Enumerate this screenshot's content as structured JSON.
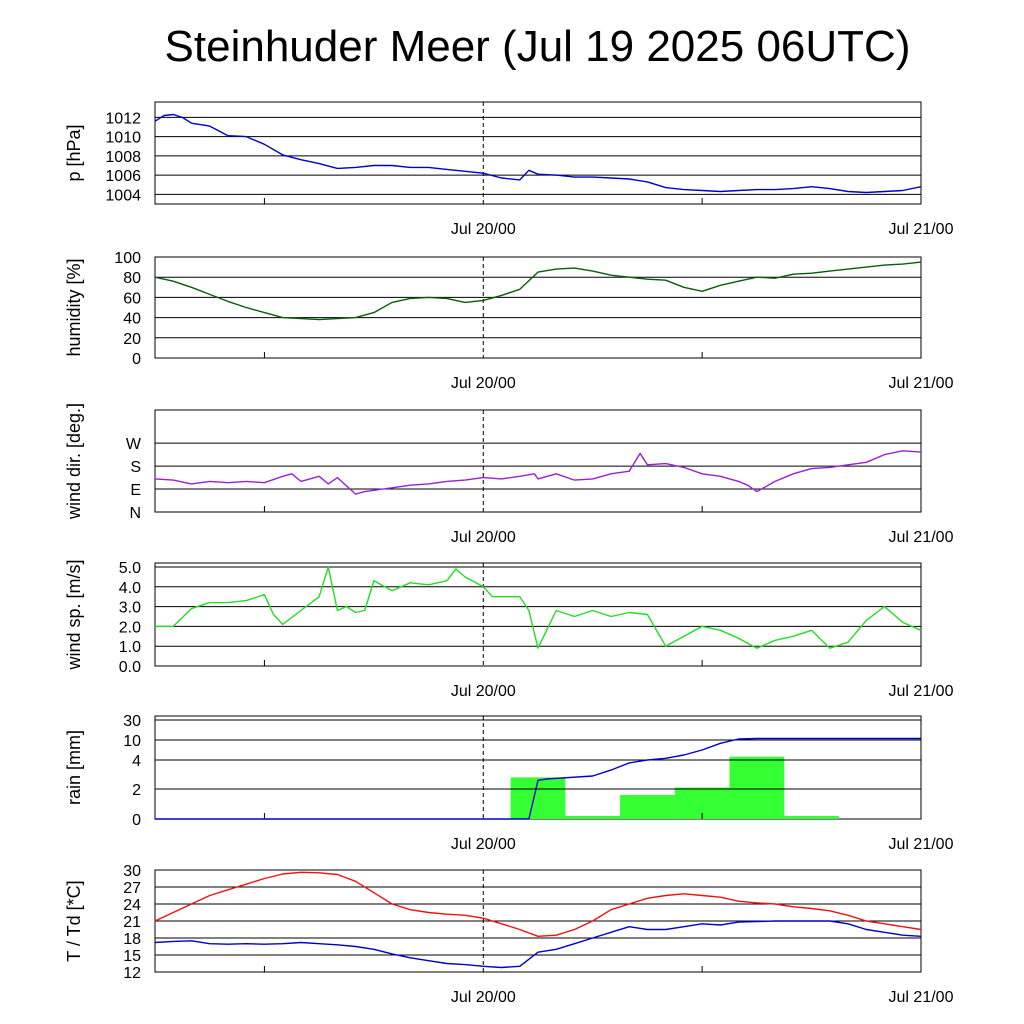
{
  "title": "Steinhuder Meer (Jul 19 2025 06UTC)",
  "colors": {
    "pressure": "#0000cc",
    "humidity": "#0a5c0a",
    "wind_dir": "#9a1fd6",
    "wind_speed": "#22dd22",
    "rain_bar": "#33ff33",
    "rain_cumulative": "#0000cc",
    "temperature": "#ee1111",
    "dewpoint": "#0000cc"
  },
  "chart_data": [
    {
      "type": "line",
      "ylabel": "p [hPa]",
      "ylim": [
        1003,
        1013.6
      ],
      "yticks": [
        1004,
        1006,
        1008,
        1010,
        1012
      ],
      "ytick_labels": [
        "1004",
        "1006",
        "1008",
        "1010",
        "1012"
      ],
      "x_ticks": [
        "Jul 20/00",
        "Jul 21/00"
      ],
      "x_tick_hours": [
        18,
        42
      ],
      "xlim_hours": [
        0,
        42
      ],
      "series": [
        {
          "name": "",
          "x": [
            0,
            0.5,
            1,
            1.5,
            2,
            3,
            4,
            5,
            6,
            7,
            8,
            9,
            10,
            11,
            12,
            13,
            14,
            15,
            16,
            17,
            18,
            19,
            20,
            20.5,
            21,
            22,
            23,
            24,
            25,
            26,
            27,
            28,
            29,
            30,
            31,
            32,
            33,
            34,
            35,
            36,
            37,
            38,
            39,
            40,
            41,
            42
          ],
          "y": [
            1011.6,
            1012.2,
            1012.3,
            1012.0,
            1011.4,
            1011.1,
            1010.1,
            1010.0,
            1009.2,
            1008.1,
            1007.6,
            1007.2,
            1006.7,
            1006.8,
            1007.0,
            1007.0,
            1006.8,
            1006.8,
            1006.6,
            1006.4,
            1006.2,
            1005.7,
            1005.5,
            1006.5,
            1006.1,
            1006.0,
            1005.8,
            1005.8,
            1005.7,
            1005.6,
            1005.3,
            1004.7,
            1004.5,
            1004.4,
            1004.3,
            1004.4,
            1004.5,
            1004.5,
            1004.6,
            1004.8,
            1004.6,
            1004.3,
            1004.2,
            1004.3,
            1004.4,
            1004.8
          ]
        }
      ]
    },
    {
      "type": "line",
      "ylabel": "humidity [%]",
      "ylim": [
        0,
        100
      ],
      "yticks": [
        0,
        20,
        40,
        60,
        80,
        100
      ],
      "ytick_labels": [
        "0",
        "20",
        "40",
        "60",
        "80",
        "100"
      ],
      "x_ticks": [
        "Jul 20/00",
        "Jul 21/00"
      ],
      "x_tick_hours": [
        18,
        42
      ],
      "xlim_hours": [
        0,
        42
      ],
      "series": [
        {
          "name": "",
          "x": [
            0,
            1,
            2,
            3,
            4,
            5,
            6,
            7,
            8,
            9,
            10,
            11,
            12,
            13,
            14,
            15,
            16,
            17,
            18,
            19,
            20,
            21,
            22,
            23,
            24,
            25,
            26,
            27,
            28,
            29,
            30,
            31,
            32,
            33,
            34,
            35,
            36,
            37,
            38,
            39,
            40,
            41,
            42
          ],
          "y": [
            80,
            76,
            70,
            63,
            56,
            50,
            45,
            40,
            39,
            38,
            39,
            40,
            45,
            55,
            59,
            60,
            59,
            55,
            57,
            62,
            68,
            85,
            88,
            89,
            86,
            82,
            80,
            78,
            77,
            70,
            66,
            72,
            76,
            80,
            79,
            83,
            84,
            86,
            88,
            90,
            92,
            93,
            95
          ]
        }
      ]
    },
    {
      "type": "line",
      "ylabel": "wind dir. [deg.]",
      "ylim": [
        0,
        400
      ],
      "yticks": [
        0,
        90,
        180,
        270
      ],
      "ytick_labels": [
        "N",
        "E",
        "S",
        "W"
      ],
      "x_ticks": [
        "Jul 20/00",
        "Jul 21/00"
      ],
      "x_tick_hours": [
        18,
        42
      ],
      "xlim_hours": [
        0,
        42
      ],
      "series": [
        {
          "name": "",
          "x": [
            0,
            1,
            2,
            3,
            4,
            5,
            6,
            7,
            7.5,
            8,
            9,
            9.5,
            10,
            11,
            11.5,
            12,
            13,
            14,
            15,
            16,
            17,
            18,
            19,
            20,
            20.8,
            21,
            22,
            23,
            24,
            25,
            26,
            26.6,
            27,
            28,
            29,
            30,
            31,
            32,
            32.5,
            33,
            34,
            35,
            36,
            37,
            38,
            39,
            40,
            41,
            42
          ],
          "y": [
            130,
            125,
            110,
            120,
            115,
            120,
            115,
            140,
            150,
            120,
            140,
            110,
            135,
            70,
            80,
            85,
            95,
            105,
            110,
            120,
            125,
            135,
            130,
            140,
            150,
            130,
            150,
            125,
            130,
            150,
            160,
            230,
            185,
            190,
            175,
            150,
            140,
            120,
            105,
            80,
            120,
            150,
            170,
            175,
            185,
            195,
            225,
            240,
            235
          ]
        }
      ]
    },
    {
      "type": "line",
      "ylabel": "wind sp. [m/s]",
      "ylim": [
        0,
        5.2
      ],
      "yticks": [
        0,
        1,
        2,
        3,
        4,
        5
      ],
      "ytick_labels": [
        "0.0",
        "1.0",
        "2.0",
        "3.0",
        "4.0",
        "5.0"
      ],
      "x_ticks": [
        "Jul 20/00",
        "Jul 21/00"
      ],
      "x_tick_hours": [
        18,
        42
      ],
      "xlim_hours": [
        0,
        42
      ],
      "series": [
        {
          "name": "",
          "x": [
            0,
            1,
            2,
            3,
            4,
            5,
            6,
            6.5,
            7,
            8,
            9,
            9.5,
            10,
            10.5,
            11,
            11.5,
            12,
            13,
            14,
            15,
            16,
            16.5,
            17,
            18,
            18.5,
            19,
            20,
            20.5,
            21,
            22,
            23,
            24,
            25,
            26,
            27,
            28,
            29,
            30,
            31,
            32,
            33,
            34,
            35,
            36,
            37,
            38,
            39,
            40,
            41,
            42
          ],
          "y": [
            2.0,
            2.0,
            2.9,
            3.2,
            3.2,
            3.3,
            3.6,
            2.6,
            2.1,
            2.8,
            3.5,
            5.0,
            2.8,
            3.0,
            2.7,
            2.8,
            4.3,
            3.8,
            4.2,
            4.1,
            4.3,
            4.9,
            4.5,
            4.0,
            3.5,
            3.5,
            3.5,
            2.8,
            0.9,
            2.8,
            2.5,
            2.8,
            2.5,
            2.7,
            2.6,
            1.0,
            1.5,
            2.0,
            1.8,
            1.4,
            0.9,
            1.3,
            1.5,
            1.8,
            0.9,
            1.2,
            2.3,
            3.0,
            2.2,
            1.8
          ]
        }
      ]
    },
    {
      "type": "bar",
      "ylabel": "rain [mm]",
      "ylim": [
        0,
        30
      ],
      "yticks": [
        0,
        2,
        4,
        10,
        30
      ],
      "ytick_labels": [
        "0",
        "2",
        "4",
        "10",
        "30"
      ],
      "y_scale": "nonlinear (ticks 0, 2, 4, 10, 30 evenly spaced)",
      "x_ticks": [
        "Jul 20/00",
        "Jul 21/00"
      ],
      "x_tick_hours": [
        18,
        42
      ],
      "xlim_hours": [
        0,
        42
      ],
      "bars": {
        "start_hours": [
          19.5,
          22.5,
          25.5,
          28.5,
          31.5,
          34.5
        ],
        "width_hours": 3,
        "values": [
          2.8,
          0.2,
          1.6,
          2.1,
          5.0,
          0.2
        ]
      },
      "series": [
        {
          "name": "",
          "x": [
            0,
            20.5,
            21,
            21.5,
            24,
            25,
            26,
            27,
            28,
            29,
            30,
            31,
            32,
            33,
            34,
            42
          ],
          "y": [
            0,
            0,
            2.6,
            2.7,
            2.9,
            3.3,
            3.8,
            4.0,
            4.5,
            5.5,
            7.0,
            9.0,
            11.0,
            11.5,
            11.5,
            11.5
          ]
        }
      ]
    },
    {
      "type": "line",
      "ylabel": "T / Td [*C]",
      "ylim": [
        12,
        30
      ],
      "yticks": [
        12,
        15,
        18,
        21,
        24,
        27,
        30
      ],
      "ytick_labels": [
        "12",
        "15",
        "18",
        "21",
        "24",
        "27",
        "30"
      ],
      "x_ticks": [
        "Jul 20/00",
        "Jul 21/00"
      ],
      "x_tick_hours": [
        18,
        42
      ],
      "xlim_hours": [
        0,
        42
      ],
      "series": [
        {
          "name": "",
          "x": [
            0,
            1,
            2,
            3,
            4,
            5,
            6,
            7,
            8,
            9,
            10,
            11,
            12,
            13,
            14,
            15,
            16,
            17,
            18,
            19,
            20,
            21,
            22,
            23,
            24,
            25,
            26,
            27,
            28,
            29,
            30,
            31,
            32,
            33,
            34,
            35,
            36,
            37,
            38,
            39,
            40,
            41,
            42
          ],
          "y": [
            21,
            22.5,
            24,
            25.5,
            26.5,
            27.5,
            28.5,
            29.3,
            29.6,
            29.5,
            29.2,
            28.0,
            26.0,
            24.0,
            23.0,
            22.5,
            22.2,
            22.0,
            21.5,
            20.5,
            19.5,
            18.3,
            18.5,
            19.5,
            21,
            23,
            24,
            25,
            25.5,
            25.8,
            25.5,
            25.2,
            24.5,
            24.2,
            24.0,
            23.5,
            23.2,
            22.8,
            22,
            21,
            20.5,
            20,
            19.5
          ]
        },
        {
          "name": "",
          "x": [
            0,
            1,
            2,
            3,
            4,
            5,
            6,
            7,
            8,
            9,
            10,
            11,
            12,
            13,
            14,
            15,
            16,
            17,
            18,
            19,
            20,
            21,
            22,
            23,
            24,
            25,
            26,
            27,
            28,
            29,
            30,
            31,
            32,
            33,
            34,
            35,
            36,
            37,
            38,
            39,
            40,
            41,
            42
          ],
          "y": [
            17.2,
            17.4,
            17.5,
            17.0,
            16.9,
            17.0,
            16.9,
            17.0,
            17.2,
            17.0,
            16.8,
            16.5,
            16.0,
            15.2,
            14.5,
            14.0,
            13.5,
            13.3,
            13.0,
            12.8,
            13.0,
            15.5,
            16.0,
            17.0,
            18.0,
            19.0,
            20.0,
            19.5,
            19.5,
            20.0,
            20.5,
            20.3,
            20.8,
            20.9,
            21.0,
            21.0,
            21.0,
            21.0,
            20.5,
            19.5,
            19.0,
            18.5,
            18.3
          ]
        }
      ]
    }
  ]
}
